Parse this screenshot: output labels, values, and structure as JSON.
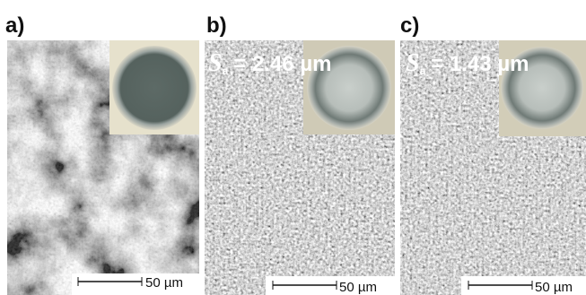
{
  "panels": [
    {
      "label": "a)",
      "scale_bar": "50 µm"
    },
    {
      "label": "b)",
      "roughness": {
        "symbol": "S",
        "subscript": "a",
        "value": "= 2.46 µm"
      },
      "scale_bar": "50 µm"
    },
    {
      "label": "c)",
      "roughness": {
        "symbol": "S",
        "subscript": "a",
        "value": "= 1.43 µm"
      },
      "scale_bar": "50 µm"
    }
  ]
}
